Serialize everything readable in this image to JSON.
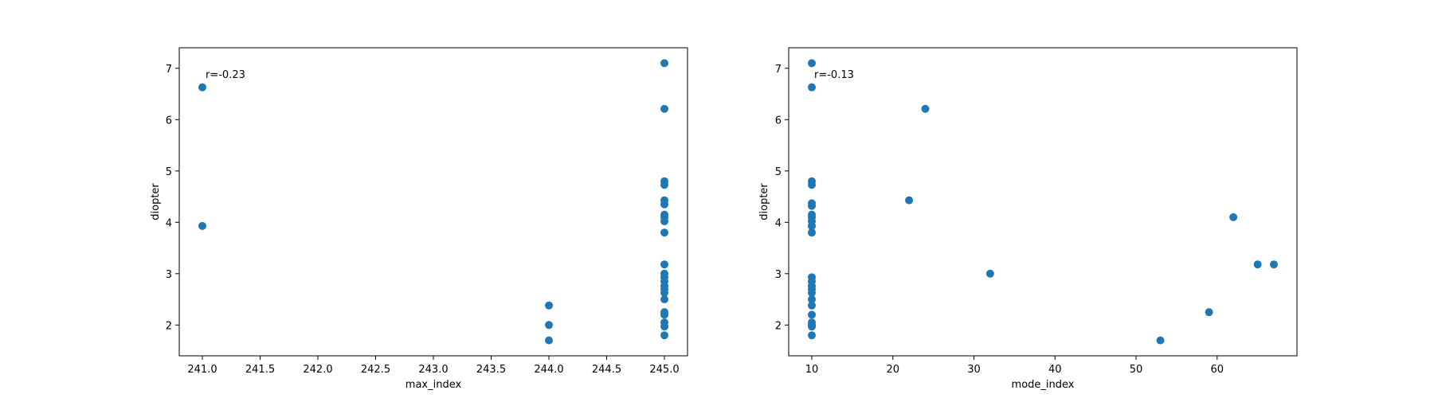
{
  "colors": {
    "marker": "#1f77b4",
    "axes": "#000000",
    "background": "#ffffff"
  },
  "chart_data": [
    {
      "type": "scatter",
      "xlabel": "max_index",
      "ylabel": "diopter",
      "annotation": "r=-0.23",
      "xlim": [
        240.8,
        245.2
      ],
      "ylim": [
        1.4,
        7.4
      ],
      "xticks": [
        241.0,
        241.5,
        242.0,
        242.5,
        243.0,
        243.5,
        244.0,
        244.5,
        245.0
      ],
      "xtick_labels": [
        "241.0",
        "241.5",
        "242.0",
        "242.5",
        "243.0",
        "243.5",
        "244.0",
        "244.5",
        "245.0"
      ],
      "yticks": [
        2,
        3,
        4,
        5,
        6,
        7
      ],
      "ytick_labels": [
        "2",
        "3",
        "4",
        "5",
        "6",
        "7"
      ],
      "grid": false,
      "points": [
        {
          "x": 241,
          "y": 6.63
        },
        {
          "x": 241,
          "y": 3.93
        },
        {
          "x": 244,
          "y": 2.38
        },
        {
          "x": 244,
          "y": 2.0
        },
        {
          "x": 244,
          "y": 1.7
        },
        {
          "x": 245,
          "y": 7.1
        },
        {
          "x": 245,
          "y": 6.21
        },
        {
          "x": 245,
          "y": 4.8
        },
        {
          "x": 245,
          "y": 4.73
        },
        {
          "x": 245,
          "y": 4.43
        },
        {
          "x": 245,
          "y": 4.35
        },
        {
          "x": 245,
          "y": 4.15
        },
        {
          "x": 245,
          "y": 4.1
        },
        {
          "x": 245,
          "y": 4.02
        },
        {
          "x": 245,
          "y": 3.8
        },
        {
          "x": 245,
          "y": 3.18
        },
        {
          "x": 245,
          "y": 3.0
        },
        {
          "x": 245,
          "y": 2.93
        },
        {
          "x": 245,
          "y": 2.85
        },
        {
          "x": 245,
          "y": 2.76
        },
        {
          "x": 245,
          "y": 2.7
        },
        {
          "x": 245,
          "y": 2.63
        },
        {
          "x": 245,
          "y": 2.5
        },
        {
          "x": 245,
          "y": 2.25
        },
        {
          "x": 245,
          "y": 2.2
        },
        {
          "x": 245,
          "y": 2.05
        },
        {
          "x": 245,
          "y": 1.97
        },
        {
          "x": 245,
          "y": 1.8
        }
      ]
    },
    {
      "type": "scatter",
      "xlabel": "mode_index",
      "ylabel": "diopter",
      "annotation": "r=-0.13",
      "xlim": [
        7.15,
        69.85
      ],
      "ylim": [
        1.4,
        7.4
      ],
      "xticks": [
        10,
        20,
        30,
        40,
        50,
        60
      ],
      "xtick_labels": [
        "10",
        "20",
        "30",
        "40",
        "50",
        "60"
      ],
      "yticks": [
        2,
        3,
        4,
        5,
        6,
        7
      ],
      "ytick_labels": [
        "2",
        "3",
        "4",
        "5",
        "6",
        "7"
      ],
      "grid": false,
      "points": [
        {
          "x": 10,
          "y": 7.1
        },
        {
          "x": 10,
          "y": 6.63
        },
        {
          "x": 10,
          "y": 4.8
        },
        {
          "x": 10,
          "y": 4.73
        },
        {
          "x": 10,
          "y": 4.37
        },
        {
          "x": 10,
          "y": 4.32
        },
        {
          "x": 10,
          "y": 4.15
        },
        {
          "x": 10,
          "y": 4.1
        },
        {
          "x": 10,
          "y": 4.02
        },
        {
          "x": 10,
          "y": 3.93
        },
        {
          "x": 10,
          "y": 3.8
        },
        {
          "x": 10,
          "y": 2.93
        },
        {
          "x": 10,
          "y": 2.85
        },
        {
          "x": 10,
          "y": 2.76
        },
        {
          "x": 10,
          "y": 2.7
        },
        {
          "x": 10,
          "y": 2.63
        },
        {
          "x": 10,
          "y": 2.5
        },
        {
          "x": 10,
          "y": 2.38
        },
        {
          "x": 10,
          "y": 2.2
        },
        {
          "x": 10,
          "y": 2.05
        },
        {
          "x": 10,
          "y": 2.0
        },
        {
          "x": 10,
          "y": 1.97
        },
        {
          "x": 10,
          "y": 1.8
        },
        {
          "x": 22,
          "y": 4.43
        },
        {
          "x": 24,
          "y": 6.21
        },
        {
          "x": 32,
          "y": 3.0
        },
        {
          "x": 53,
          "y": 1.7
        },
        {
          "x": 59,
          "y": 2.25
        },
        {
          "x": 62,
          "y": 4.1
        },
        {
          "x": 65,
          "y": 3.18
        },
        {
          "x": 67,
          "y": 3.18
        }
      ]
    }
  ]
}
